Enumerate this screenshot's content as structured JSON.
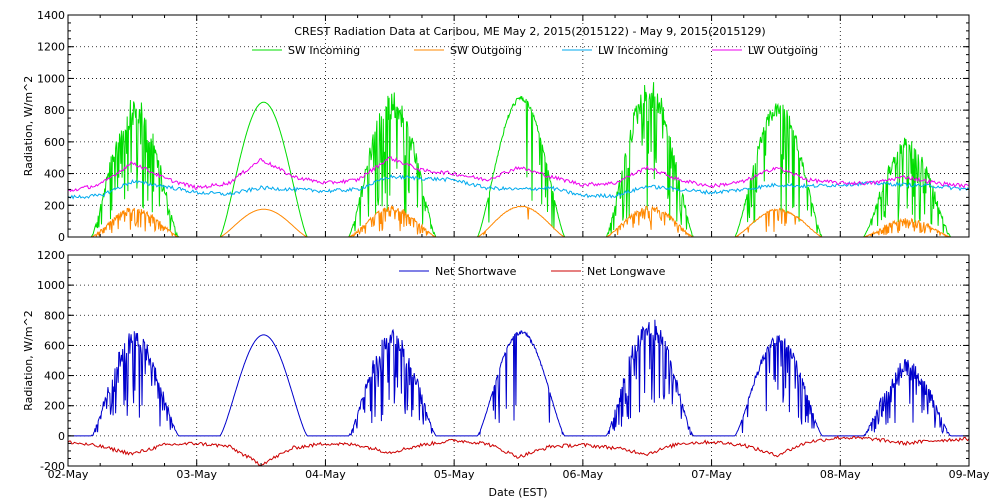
{
  "chart_data": [
    {
      "type": "line",
      "title": "CREST Radiation Data at Caribou, ME   May  2, 2015(2015122) - May  9, 2015(2015129)",
      "ylabel": "Radiation, W/m^2",
      "xlabel": "",
      "x_ticks": [
        "02-May",
        "03-May",
        "04-May",
        "05-May",
        "06-May",
        "07-May",
        "08-May",
        "09-May"
      ],
      "xlim": [
        "2015-05-02",
        "2015-05-09"
      ],
      "ylim": [
        0,
        1400
      ],
      "y_ticks": [
        0,
        200,
        400,
        600,
        800,
        1000,
        1200,
        1400
      ],
      "grid": true,
      "legend_position": "top",
      "series": [
        {
          "name": "SW Incoming",
          "color": "#00dd00",
          "daily_peak": [
            880,
            850,
            920,
            890,
            1000,
            850,
            630
          ],
          "irregularity": [
            0.85,
            0.0,
            0.8,
            0.15,
            0.8,
            0.45,
            0.9
          ]
        },
        {
          "name": "SW Outgoing",
          "color": "#ff8800",
          "daily_peak": [
            190,
            175,
            195,
            195,
            200,
            180,
            120
          ],
          "irregularity": [
            0.8,
            0.0,
            0.7,
            0.1,
            0.8,
            0.35,
            0.9
          ]
        },
        {
          "name": "LW Incoming",
          "color": "#00aaee",
          "x": [
            0,
            0.25,
            0.5,
            0.75,
            1,
            1.25,
            1.5,
            1.75,
            2,
            2.25,
            2.5,
            2.75,
            3,
            3.25,
            3.5,
            3.75,
            4,
            4.25,
            4.5,
            4.75,
            5,
            5.25,
            5.5,
            5.75,
            6,
            6.25,
            6.5,
            6.75,
            7
          ],
          "y": [
            250,
            260,
            350,
            320,
            280,
            270,
            310,
            300,
            290,
            300,
            380,
            370,
            360,
            310,
            300,
            310,
            260,
            260,
            320,
            300,
            280,
            300,
            330,
            320,
            330,
            340,
            330,
            320,
            300
          ]
        },
        {
          "name": "LW Outgoing",
          "color": "#ee00ee",
          "x": [
            0,
            0.25,
            0.5,
            0.75,
            1,
            1.25,
            1.5,
            1.75,
            2,
            2.25,
            2.5,
            2.75,
            3,
            3.25,
            3.5,
            3.75,
            4,
            4.25,
            4.5,
            4.75,
            5,
            5.25,
            5.5,
            5.75,
            6,
            6.25,
            6.5,
            6.75,
            7
          ],
          "y": [
            290,
            330,
            470,
            370,
            310,
            340,
            490,
            380,
            340,
            360,
            500,
            420,
            400,
            360,
            440,
            380,
            330,
            340,
            440,
            360,
            320,
            350,
            440,
            360,
            340,
            340,
            380,
            340,
            320
          ]
        }
      ]
    },
    {
      "type": "line",
      "title": "",
      "ylabel": "Radiation, W/m^2",
      "xlabel": "Date (EST)",
      "x_ticks": [
        "02-May",
        "03-May",
        "04-May",
        "05-May",
        "06-May",
        "07-May",
        "08-May",
        "09-May"
      ],
      "xlim": [
        "2015-05-02",
        "2015-05-09"
      ],
      "ylim": [
        -200,
        1200
      ],
      "y_ticks": [
        -200,
        0,
        200,
        400,
        600,
        800,
        1000,
        1200
      ],
      "grid": true,
      "legend_position": "top",
      "series": [
        {
          "name": "Net Shortwave",
          "color": "#0000cc",
          "daily_peak": [
            700,
            670,
            710,
            700,
            790,
            670,
            510
          ],
          "irregularity": [
            0.85,
            0.0,
            0.8,
            0.15,
            0.8,
            0.45,
            0.9
          ]
        },
        {
          "name": "Net Longwave",
          "color": "#cc0000",
          "x": [
            0,
            0.25,
            0.5,
            0.75,
            1,
            1.25,
            1.5,
            1.75,
            2,
            2.25,
            2.5,
            2.75,
            3,
            3.25,
            3.5,
            3.75,
            4,
            4.25,
            4.5,
            4.75,
            5,
            5.25,
            5.5,
            5.75,
            6,
            6.25,
            6.5,
            6.75,
            7
          ],
          "y": [
            -40,
            -70,
            -120,
            -60,
            -50,
            -70,
            -190,
            -80,
            -50,
            -60,
            -110,
            -60,
            -30,
            -50,
            -140,
            -70,
            -60,
            -80,
            -120,
            -50,
            -40,
            -60,
            -130,
            -40,
            -10,
            -20,
            -50,
            -30,
            -20
          ]
        }
      ]
    }
  ]
}
